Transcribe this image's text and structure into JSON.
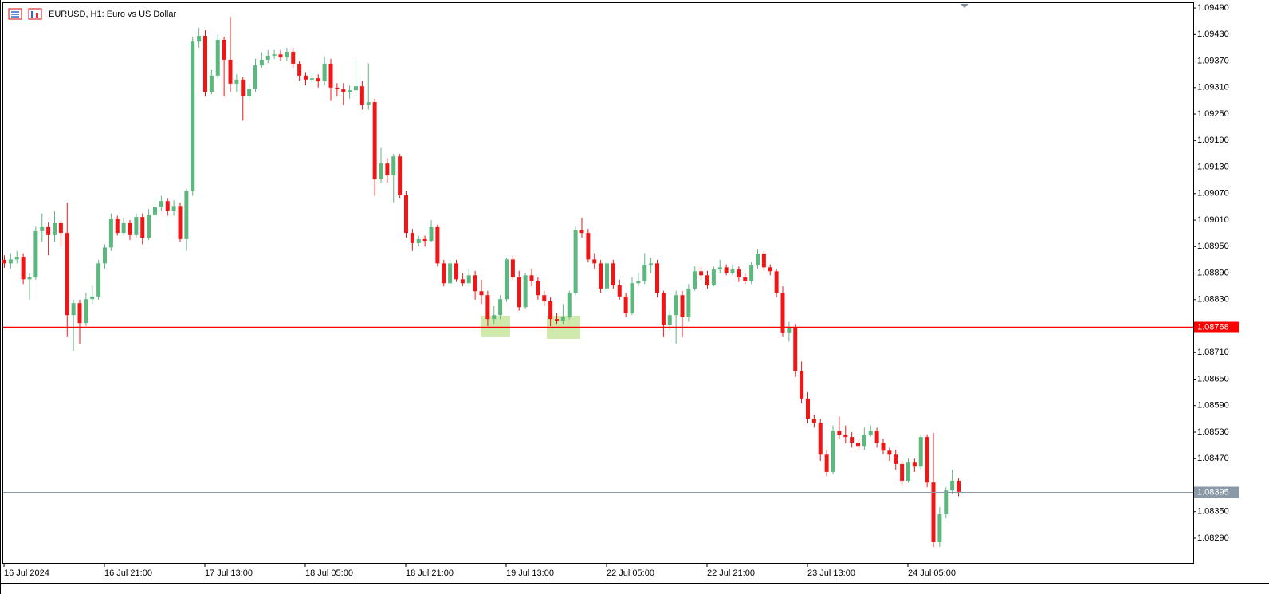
{
  "chart_data": {
    "type": "candlestick",
    "title": "EURUSD, H1:  Euro vs US Dollar",
    "up_color": "#5cb87f",
    "down_color": "#f01616",
    "ylim": [
      1.08234,
      1.09501
    ],
    "yticks": [
      {
        "value": 1.0949,
        "label": "1.09490"
      },
      {
        "value": 1.0943,
        "label": "1.09430"
      },
      {
        "value": 1.0937,
        "label": "1.09370"
      },
      {
        "value": 1.0931,
        "label": "1.09310"
      },
      {
        "value": 1.0925,
        "label": "1.09250"
      },
      {
        "value": 1.0919,
        "label": "1.09190"
      },
      {
        "value": 1.0913,
        "label": "1.09130"
      },
      {
        "value": 1.0907,
        "label": "1.09070"
      },
      {
        "value": 1.0901,
        "label": "1.09010"
      },
      {
        "value": 1.0895,
        "label": "1.08950"
      },
      {
        "value": 1.0889,
        "label": "1.08890"
      },
      {
        "value": 1.0883,
        "label": "1.08830"
      },
      {
        "value": 1.0871,
        "label": "1.08710"
      },
      {
        "value": 1.0865,
        "label": "1.08650"
      },
      {
        "value": 1.0859,
        "label": "1.08590"
      },
      {
        "value": 1.0853,
        "label": "1.08530"
      },
      {
        "value": 1.0847,
        "label": "1.08470"
      },
      {
        "value": 1.0835,
        "label": "1.08350"
      },
      {
        "value": 1.0829,
        "label": "1.08290"
      }
    ],
    "lines": [
      {
        "value": 1.08768,
        "label": "1.08768",
        "color": "#ff0000"
      },
      {
        "value": 1.08395,
        "label": "1.08395",
        "color": "#8a99a8"
      }
    ],
    "categories": [
      "16 Jul 2024",
      null,
      null,
      null,
      null,
      null,
      null,
      null,
      null,
      null,
      null,
      null,
      null,
      null,
      null,
      null,
      "16 Jul 21:00",
      null,
      null,
      null,
      null,
      null,
      null,
      null,
      null,
      null,
      null,
      null,
      null,
      null,
      null,
      null,
      "17 Jul 13:00",
      null,
      null,
      null,
      null,
      null,
      null,
      null,
      null,
      null,
      null,
      null,
      null,
      null,
      null,
      null,
      "18 Jul 05:00",
      null,
      null,
      null,
      null,
      null,
      null,
      null,
      null,
      null,
      null,
      null,
      null,
      null,
      null,
      null,
      "18 Jul 21:00",
      null,
      null,
      null,
      null,
      null,
      null,
      null,
      null,
      null,
      null,
      null,
      null,
      null,
      null,
      null,
      "19 Jul 13:00",
      null,
      null,
      null,
      null,
      null,
      null,
      null,
      null,
      null,
      null,
      null,
      null,
      null,
      null,
      null,
      "22 Jul 05:00",
      null,
      null,
      null,
      null,
      null,
      null,
      null,
      null,
      null,
      null,
      null,
      null,
      null,
      null,
      null,
      "22 Jul 21:00",
      null,
      null,
      null,
      null,
      null,
      null,
      null,
      null,
      null,
      null,
      null,
      null,
      null,
      null,
      null,
      "23 Jul 13:00",
      null,
      null,
      null,
      null,
      null,
      null,
      null,
      null,
      null,
      null,
      null,
      null,
      null,
      null,
      null,
      "24 Jul 05:00",
      null,
      null,
      null,
      null,
      null,
      null,
      null,
      null
    ],
    "open": [
      1.0892,
      1.08912,
      1.08921,
      1.08927,
      1.08876,
      1.0888,
      1.08985,
      1.08994,
      1.08976,
      1.09003,
      1.08981,
      1.08795,
      1.08822,
      1.08777,
      1.08831,
      1.08837,
      1.08912,
      1.08948,
      1.09012,
      1.08981,
      1.09003,
      1.08976,
      1.09017,
      1.0897,
      1.09021,
      1.09039,
      1.09053,
      1.0903,
      1.09042,
      1.08967,
      1.09075,
      1.09414,
      1.09427,
      1.093,
      1.09337,
      1.09418,
      1.09373,
      1.09319,
      1.09328,
      1.09291,
      1.09306,
      1.0936,
      1.09373,
      1.09382,
      1.09385,
      1.09378,
      1.09391,
      1.09364,
      1.09337,
      1.09328,
      1.09331,
      1.09324,
      1.09364,
      1.0931,
      1.09306,
      1.093,
      1.09304,
      1.09313,
      1.0927,
      1.09277,
      1.09102,
      1.09138,
      1.09111,
      1.09154,
      1.09066,
      1.08981,
      1.08958,
      1.08967,
      1.08963,
      1.08994,
      1.08912,
      1.08867,
      1.08912,
      1.08876,
      1.08867,
      1.08885,
      1.08849,
      1.0884,
      1.08786,
      1.08795,
      1.08831,
      1.08921,
      1.0888,
      1.08813,
      1.08885,
      1.08873,
      1.0884,
      1.08826,
      1.08786,
      1.08782,
      1.0879,
      1.08844,
      1.08988,
      1.08981,
      1.08921,
      1.08912,
      1.08855,
      1.08912,
      1.08862,
      1.08837,
      1.088,
      1.08867,
      1.08873,
      1.08909,
      1.08912,
      1.08844,
      1.08772,
      1.08795,
      1.0884,
      1.0879,
      1.08855,
      1.08894,
      1.08885,
      1.08862,
      1.08898,
      1.08903,
      1.08891,
      1.08898,
      1.0888,
      1.08873,
      1.08909,
      1.08934,
      1.08903,
      1.08894,
      1.08844,
      1.08754,
      1.08768,
      1.08669,
      1.08606,
      1.0856,
      1.08551,
      1.08479,
      1.0844,
      1.08533,
      1.08524,
      1.08519,
      1.08506,
      1.08497,
      1.08524,
      1.08533,
      1.08506,
      1.08488,
      1.08479,
      1.08458,
      1.0842,
      1.08461,
      1.08452,
      1.08519,
      1.08416,
      1.08281,
      1.08344,
      1.08398,
      1.0842
    ],
    "high": [
      1.0893,
      1.08935,
      1.0894,
      1.08935,
      1.0889,
      1.08995,
      1.09025,
      1.09005,
      1.0903,
      1.0901,
      1.0905,
      1.0883,
      1.0883,
      1.08845,
      1.0886,
      1.0892,
      1.08955,
      1.09025,
      1.0902,
      1.09015,
      1.0901,
      1.09025,
      1.09025,
      1.09035,
      1.0906,
      1.09065,
      1.0906,
      1.09055,
      1.0905,
      1.0908,
      1.09425,
      1.09445,
      1.0944,
      1.0935,
      1.0943,
      1.09425,
      1.0947,
      1.0934,
      1.09335,
      1.0932,
      1.09375,
      1.0939,
      1.09395,
      1.09395,
      1.09395,
      1.094,
      1.094,
      1.0937,
      1.09345,
      1.09345,
      1.0934,
      1.0938,
      1.09375,
      1.0932,
      1.0932,
      1.09315,
      1.0937,
      1.09325,
      1.09365,
      1.09285,
      1.09175,
      1.0915,
      1.0916,
      1.0916,
      1.09075,
      1.0899,
      1.08975,
      1.08975,
      1.0901,
      1.09,
      1.0892,
      1.0892,
      1.0892,
      1.0889,
      1.089,
      1.08895,
      1.08875,
      1.0885,
      1.08815,
      1.0884,
      1.08925,
      1.0893,
      1.08895,
      1.0889,
      1.089,
      1.0888,
      1.0885,
      1.08835,
      1.088,
      1.0882,
      1.0885,
      1.08995,
      1.09015,
      1.0899,
      1.08935,
      1.0892,
      1.0892,
      1.0892,
      1.08875,
      1.08845,
      1.0888,
      1.0889,
      1.08935,
      1.08925,
      1.0892,
      1.0885,
      1.08805,
      1.0885,
      1.0885,
      1.08865,
      1.08905,
      1.08905,
      1.08895,
      1.08905,
      1.0892,
      1.0891,
      1.0891,
      1.08905,
      1.0889,
      1.08915,
      1.08945,
      1.0894,
      1.0891,
      1.089,
      1.0886,
      1.0878,
      1.08775,
      1.0869,
      1.0862,
      1.0857,
      1.0856,
      1.0849,
      1.08545,
      1.08565,
      1.08545,
      1.0853,
      1.08515,
      1.0854,
      1.08545,
      1.0854,
      1.08515,
      1.08495,
      1.0849,
      1.08465,
      1.0847,
      1.0847,
      1.08525,
      1.08525,
      1.08528,
      1.0836,
      1.08405,
      1.08445,
      1.08425
    ],
    "low": [
      1.08902,
      1.089,
      1.08912,
      1.08865,
      1.0883,
      1.08875,
      1.0896,
      1.0893,
      1.0896,
      1.0895,
      1.08745,
      1.08714,
      1.0873,
      1.0877,
      1.0882,
      1.0883,
      1.089,
      1.0894,
      1.08975,
      1.08975,
      1.08965,
      1.0897,
      1.08955,
      1.08965,
      1.09015,
      1.0903,
      1.0902,
      1.0902,
      1.0896,
      1.0894,
      1.09065,
      1.094,
      1.0929,
      1.09295,
      1.0933,
      1.0929,
      1.093,
      1.093,
      1.09235,
      1.0928,
      1.093,
      1.09355,
      1.09365,
      1.09375,
      1.0937,
      1.0937,
      1.09355,
      1.09325,
      1.09315,
      1.0932,
      1.0931,
      1.09315,
      1.0928,
      1.0929,
      1.0927,
      1.09285,
      1.0929,
      1.0926,
      1.0926,
      1.09065,
      1.09095,
      1.09095,
      1.0905,
      1.0906,
      1.0897,
      1.0894,
      1.0895,
      1.0895,
      1.0896,
      1.08905,
      1.0886,
      1.0886,
      1.0887,
      1.0886,
      1.0886,
      1.0883,
      1.0882,
      1.0877,
      1.08775,
      1.08785,
      1.08825,
      1.08875,
      1.08805,
      1.0881,
      1.0886,
      1.0883,
      1.08815,
      1.0877,
      1.08775,
      1.08775,
      1.08785,
      1.0884,
      1.0897,
      1.08915,
      1.089,
      1.08845,
      1.0885,
      1.08855,
      1.0883,
      1.0879,
      1.08795,
      1.0886,
      1.08865,
      1.0889,
      1.08835,
      1.08745,
      1.0876,
      1.0873,
      1.08745,
      1.0878,
      1.0885,
      1.08875,
      1.08855,
      1.0886,
      1.0889,
      1.08885,
      1.08885,
      1.0887,
      1.08865,
      1.08865,
      1.089,
      1.08895,
      1.08885,
      1.08835,
      1.08745,
      1.08735,
      1.08655,
      1.08595,
      1.0855,
      1.0854,
      1.08465,
      1.0843,
      1.08435,
      1.08515,
      1.08505,
      1.08495,
      1.0849,
      1.0849,
      1.0852,
      1.08495,
      1.0848,
      1.08465,
      1.08445,
      1.0841,
      1.08415,
      1.0844,
      1.08445,
      1.08405,
      1.0827,
      1.0827,
      1.08335,
      1.0839,
      1.08385
    ],
    "close": [
      1.08912,
      1.08921,
      1.08927,
      1.08876,
      1.0888,
      1.08985,
      1.08994,
      1.08976,
      1.09003,
      1.08981,
      1.08795,
      1.08822,
      1.08777,
      1.08831,
      1.08837,
      1.08912,
      1.08948,
      1.09012,
      1.08981,
      1.09003,
      1.08976,
      1.09017,
      1.0897,
      1.09021,
      1.09039,
      1.09053,
      1.0903,
      1.09042,
      1.08967,
      1.09075,
      1.09414,
      1.09427,
      1.093,
      1.09337,
      1.09418,
      1.09373,
      1.09319,
      1.09328,
      1.09291,
      1.09306,
      1.0936,
      1.09373,
      1.09382,
      1.09385,
      1.09378,
      1.09391,
      1.09364,
      1.09337,
      1.09328,
      1.09331,
      1.09324,
      1.09364,
      1.0931,
      1.09306,
      1.093,
      1.09304,
      1.09313,
      1.0927,
      1.09277,
      1.09102,
      1.09138,
      1.09111,
      1.09154,
      1.09066,
      1.08981,
      1.08958,
      1.08967,
      1.08963,
      1.08994,
      1.08912,
      1.08867,
      1.08912,
      1.08876,
      1.08867,
      1.08885,
      1.08849,
      1.0884,
      1.08786,
      1.08795,
      1.08831,
      1.08921,
      1.0888,
      1.08813,
      1.08885,
      1.08873,
      1.0884,
      1.08826,
      1.08786,
      1.08782,
      1.0879,
      1.08844,
      1.08988,
      1.08981,
      1.08921,
      1.08912,
      1.08855,
      1.08912,
      1.08862,
      1.08837,
      1.088,
      1.08867,
      1.08873,
      1.08909,
      1.08912,
      1.08844,
      1.08772,
      1.08795,
      1.0884,
      1.0879,
      1.08855,
      1.08894,
      1.08885,
      1.08862,
      1.08898,
      1.08903,
      1.08891,
      1.08898,
      1.0888,
      1.08873,
      1.08909,
      1.08934,
      1.08903,
      1.08894,
      1.08844,
      1.08754,
      1.08768,
      1.08669,
      1.08606,
      1.0856,
      1.08551,
      1.08479,
      1.0844,
      1.08533,
      1.08524,
      1.08519,
      1.08506,
      1.08497,
      1.08524,
      1.08533,
      1.08506,
      1.08488,
      1.08479,
      1.08458,
      1.0842,
      1.08461,
      1.08452,
      1.08519,
      1.08416,
      1.08281,
      1.08344,
      1.08398,
      1.0842,
      1.08395
    ]
  }
}
